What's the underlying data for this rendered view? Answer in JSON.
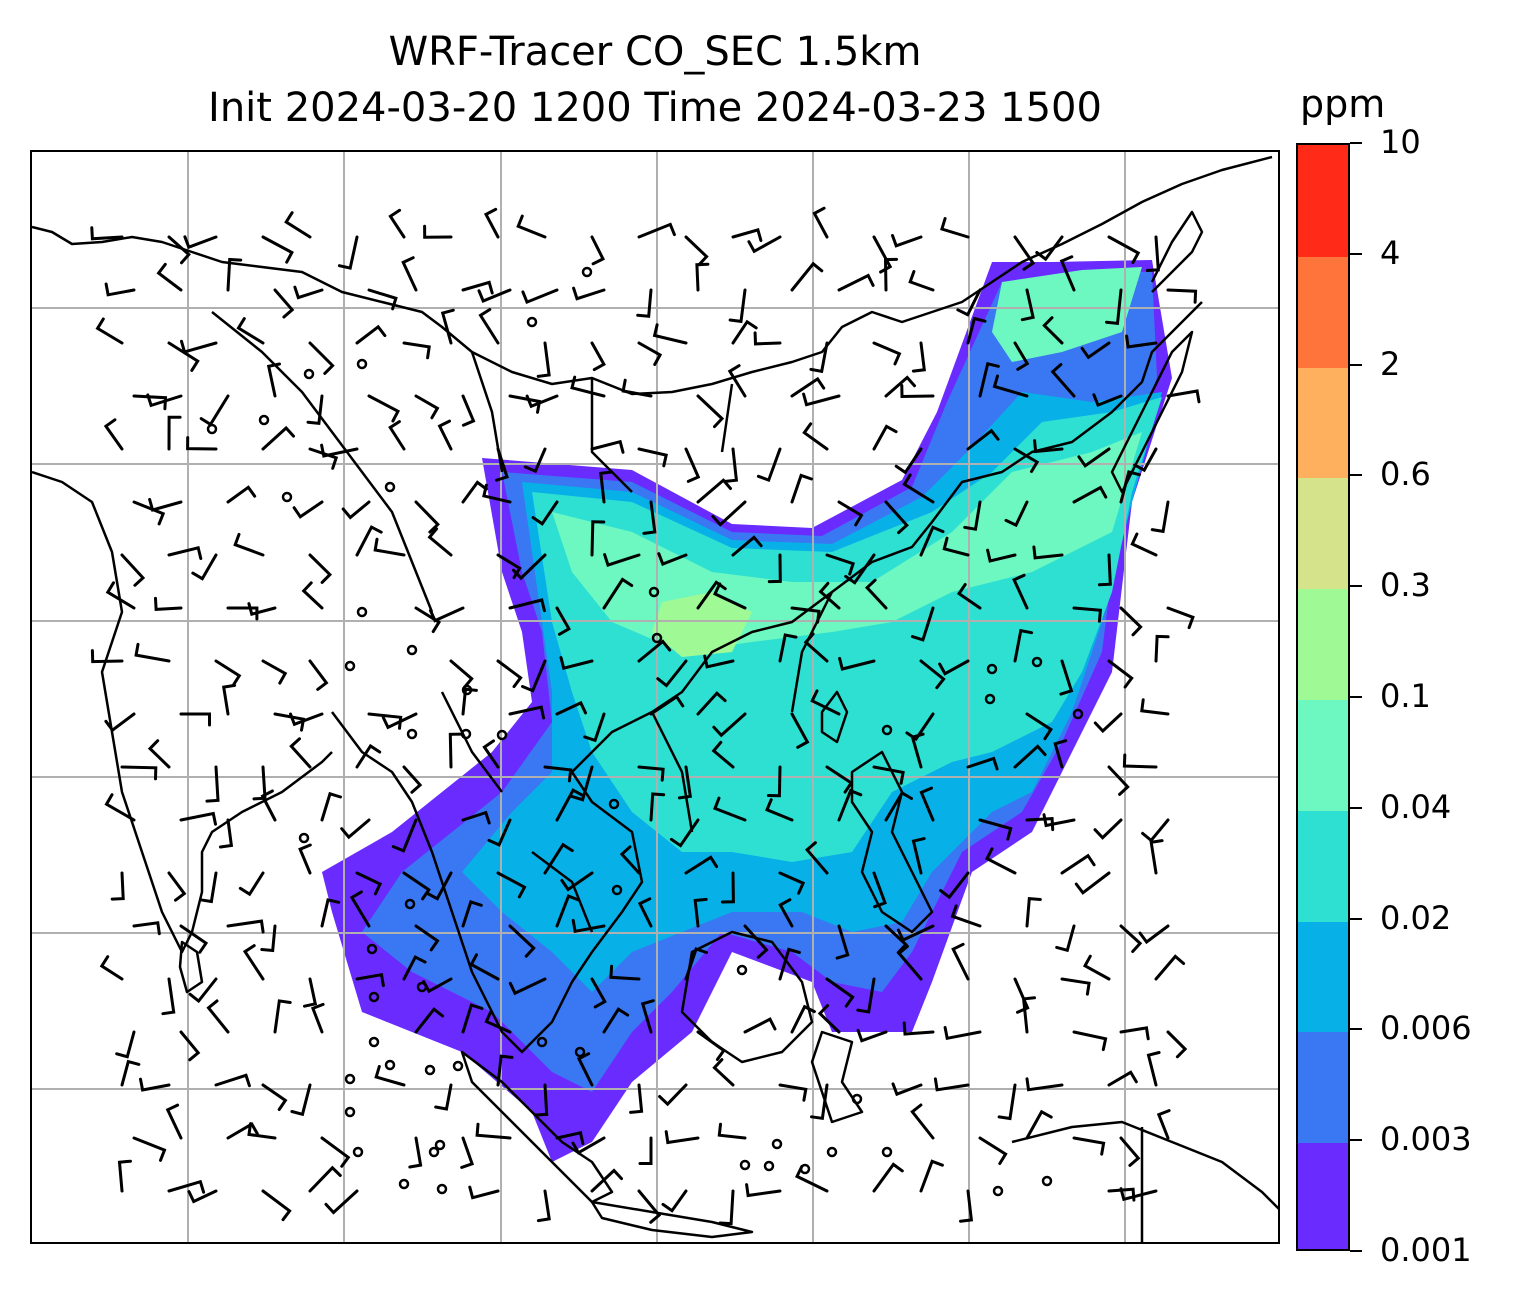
{
  "title": {
    "line1": "WRF-Tracer CO_SEC 1.5km",
    "line2": "Init 2024-03-20 1200 Time 2024-03-23 1500"
  },
  "colorbar": {
    "unit": "ppm",
    "labels": [
      "0.001",
      "0.003",
      "0.006",
      "0.02",
      "0.04",
      "0.1",
      "0.3",
      "0.6",
      "2",
      "4",
      "10"
    ],
    "colors": [
      "#6a2bff",
      "#3a77f2",
      "#07b1e8",
      "#2ee0d2",
      "#6cf8c0",
      "#9ffa96",
      "#d5e38a",
      "#ffb05e",
      "#ff743b",
      "#ff2a18"
    ]
  },
  "map": {
    "gridline_color": "#b0b0b0",
    "coastline_color": "#000000",
    "wind_barb_color": "#000000"
  }
}
